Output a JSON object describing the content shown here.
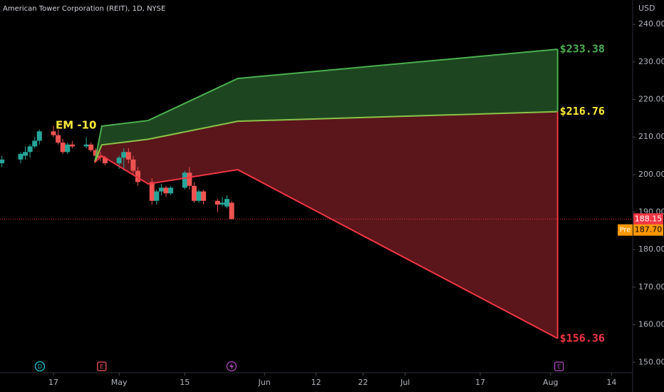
{
  "chart_data": {
    "type": "candlestick",
    "title": "American Tower Corporation (REIT), 1D, NYSE",
    "currency": "USD",
    "x": [
      6,
      10,
      11,
      12,
      13,
      14,
      17,
      18,
      19,
      20,
      21,
      24,
      25,
      26,
      27,
      28,
      31,
      32,
      33,
      34,
      35,
      38,
      39,
      40,
      41,
      42,
      45,
      46,
      47,
      48,
      49,
      52,
      53,
      54,
      55
    ],
    "open": [
      203,
      204,
      205,
      206,
      207.5,
      209,
      211.5,
      210.5,
      208.5,
      206,
      208,
      207.5,
      208,
      206.5,
      205,
      204.5,
      203,
      204.5,
      206,
      204,
      201,
      198,
      193,
      195.5,
      196.5,
      195,
      196.5,
      200.5,
      197,
      193,
      195.5,
      193,
      192,
      191.5,
      192.5
    ],
    "high": [
      205,
      206,
      207.5,
      208,
      210,
      212,
      213,
      212,
      209.5,
      208.5,
      209,
      210,
      208.5,
      207,
      206,
      205,
      205,
      207,
      207,
      205,
      202,
      199,
      196,
      197.5,
      197,
      197,
      201,
      202,
      198,
      196,
      196,
      193.5,
      194,
      194.5,
      193
    ],
    "low": [
      202,
      203,
      204,
      204.5,
      207,
      208,
      210,
      208,
      205.5,
      205.5,
      207,
      207,
      206,
      204,
      203.5,
      202.5,
      201.5,
      201,
      203,
      200,
      197,
      192,
      192,
      194.5,
      194,
      194.5,
      196,
      196,
      192.5,
      192.5,
      192,
      190,
      191.5,
      191,
      188
    ],
    "close": [
      204,
      205.5,
      206,
      207.5,
      209,
      211.5,
      210.5,
      208.5,
      206,
      208,
      207.5,
      208,
      206.5,
      205,
      204.5,
      203,
      204.5,
      206,
      204,
      201,
      198,
      193,
      195.5,
      196.5,
      195,
      196.5,
      200.5,
      197,
      193,
      195.5,
      193,
      192,
      192.5,
      193.5,
      188.15
    ],
    "up_color": "#26a69a",
    "down_color": "#ef5350",
    "xlim": [
      5.6,
      140.5
    ],
    "xticks": [
      17,
      {
        "value": 31,
        "label": "May"
      },
      15,
      {
        "value": 62,
        "label": "Jun"
      },
      12,
      22,
      {
        "value": 92,
        "label": "Jul"
      },
      17,
      {
        "value": 123,
        "label": "Aug"
      },
      14
    ],
    "xtick_positions": [
      17,
      31,
      45,
      62,
      73,
      83,
      92,
      108,
      123,
      136
    ],
    "ylim": [
      147.2,
      246.5
    ],
    "yticks": [
      {
        "value": 150,
        "label": "150.00"
      },
      {
        "value": 160,
        "label": "160.00"
      },
      {
        "value": 170,
        "label": "170.00"
      },
      {
        "value": 180,
        "label": "180.00"
      },
      {
        "value": 190,
        "label": "190.00"
      },
      {
        "value": 200,
        "label": "200.00"
      },
      {
        "value": 210,
        "label": "210.00"
      },
      {
        "value": 220,
        "label": "220.00"
      },
      {
        "value": 230,
        "label": "230.00"
      },
      {
        "value": 240,
        "label": "240.00"
      }
    ],
    "last_price": 188.15,
    "last_price_color": "#f23645",
    "premarket": {
      "label": "Pre",
      "price": {
        "value": 187.7,
        "label": "187.70"
      },
      "color": "#ff9800"
    },
    "projection": {
      "label": "EM -10",
      "label_color": "#ffeb3b",
      "x": [
        25.8,
        27.3,
        37.2,
        56.3,
        124.5
      ],
      "series": [
        {
          "color": "#4caf50",
          "label_color": "#4caf50",
          "values": [
            203.2,
            212.9,
            214.4,
            225.6,
            233.38
          ],
          "end_label": "$233.38"
        },
        {
          "color": "#8bc34a",
          "label_color": "#ffeb3b",
          "values": [
            203.2,
            207.9,
            209.4,
            214.2,
            216.76
          ],
          "end_label": "$216.76"
        },
        {
          "color": "#f23645",
          "label_color": "#f23645",
          "values": [
            203.2,
            205.0,
            197.5,
            201.3,
            156.36
          ],
          "end_label": "$156.36"
        }
      ],
      "fills": [
        "#1d4620",
        "#5a161b"
      ]
    },
    "events": [
      {
        "label": "D",
        "x": 14.1,
        "color": "#26c6da"
      },
      {
        "label": "E",
        "x": 27.3,
        "color": "#ef5350"
      },
      {
        "label": "E",
        "x": 124.8,
        "color": "#ab47bc"
      }
    ]
  }
}
